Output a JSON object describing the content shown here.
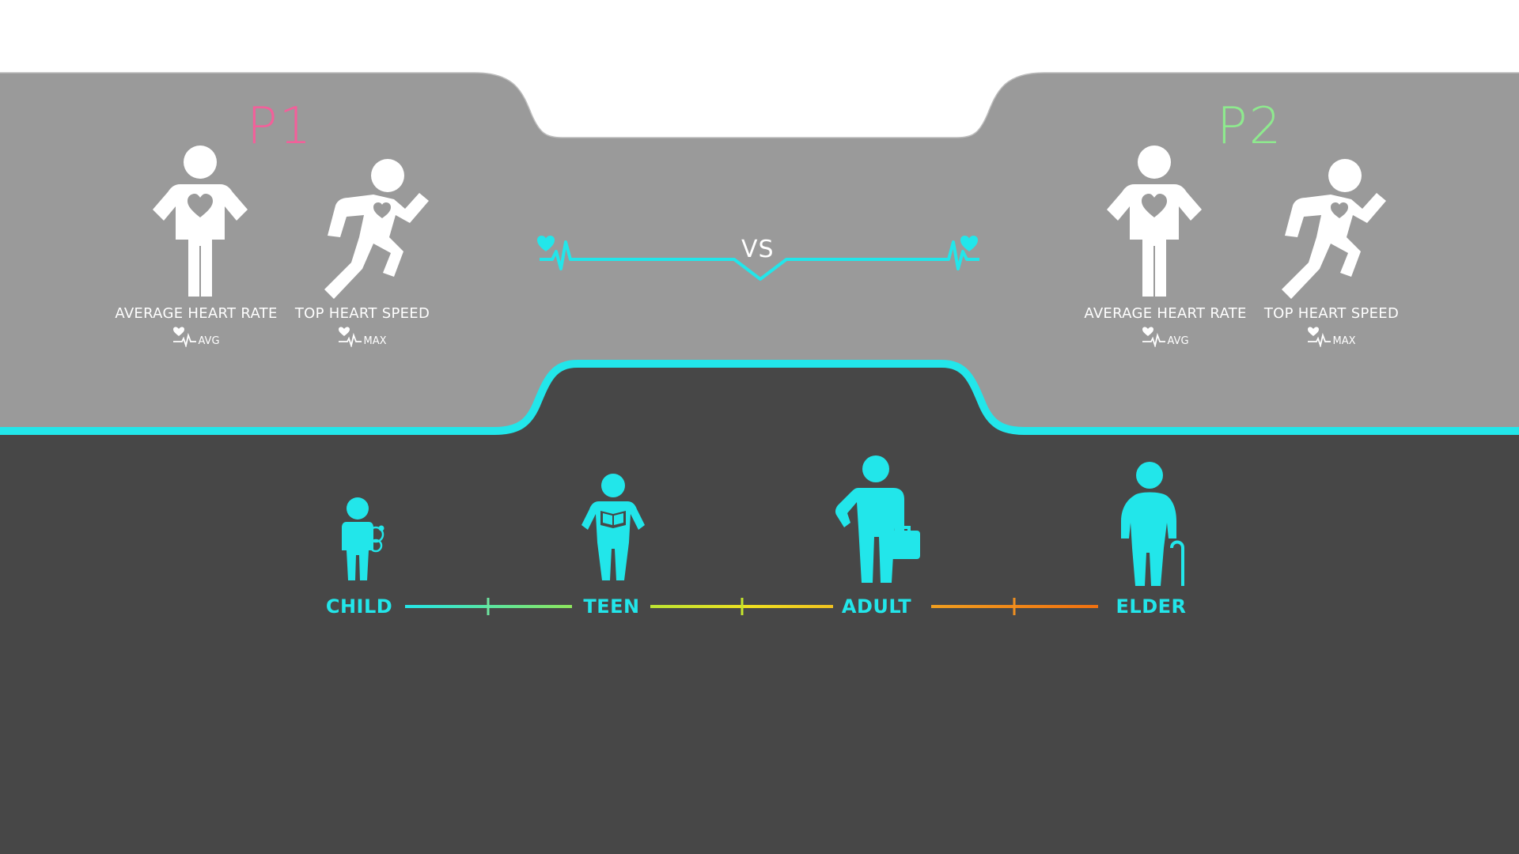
{
  "players": [
    {
      "title": "P1",
      "color": "#f2609a",
      "stats": [
        {
          "label": "AVERAGE HEART RATE",
          "badge": "AVG",
          "icon": "standing-heart-icon"
        },
        {
          "label": "TOP HEART SPEED",
          "badge": "MAX",
          "icon": "running-heart-icon"
        }
      ]
    },
    {
      "title": "P2",
      "color": "#8eea8e",
      "stats": [
        {
          "label": "AVERAGE HEART RATE",
          "badge": "AVG",
          "icon": "standing-heart-icon"
        },
        {
          "label": "TOP HEART SPEED",
          "badge": "MAX",
          "icon": "running-heart-icon"
        }
      ]
    }
  ],
  "versus": {
    "text": "VS",
    "color": "#22e6ea"
  },
  "age_groups": [
    {
      "label": "CHILD",
      "icon": "child-with-teddy-icon"
    },
    {
      "label": "TEEN",
      "icon": "teen-with-book-icon"
    },
    {
      "label": "ADULT",
      "icon": "adult-with-briefcase-icon"
    },
    {
      "label": "ELDER",
      "icon": "elder-with-cane-icon"
    }
  ],
  "colors": {
    "top_panel": "#9a9a9a",
    "bottom_panel": "#474747",
    "accent": "#22e6ea",
    "scale_gradient": [
      "#22e6ea",
      "#a8e63a",
      "#f0e020",
      "#f0a020",
      "#f07010"
    ]
  }
}
